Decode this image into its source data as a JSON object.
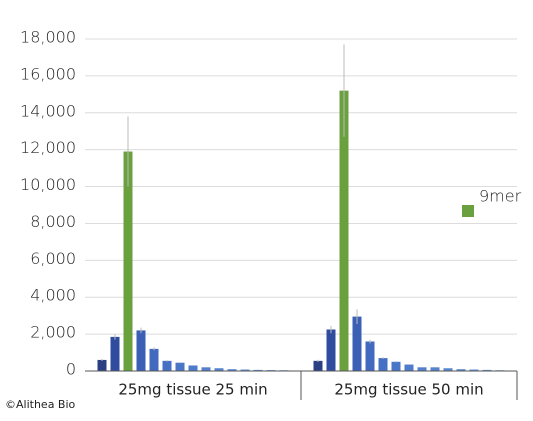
{
  "chart_data": {
    "type": "bar",
    "categories": [
      "25mg tissue 25 min",
      "25mg tissue 50 min"
    ],
    "series": [
      {
        "color": "#2b3f82",
        "values": [
          600,
          550
        ],
        "errors": [
          60,
          60
        ]
      },
      {
        "color": "#2f4c9e",
        "values": [
          1850,
          2250
        ],
        "errors": [
          150,
          200
        ]
      },
      {
        "name": "9mer",
        "color": "#6aa13e",
        "values": [
          11900,
          15200
        ],
        "errors": [
          1900,
          2500
        ]
      },
      {
        "color": "#3a5fb4",
        "values": [
          2200,
          2950
        ],
        "errors": [
          150,
          400
        ]
      },
      {
        "color": "#4169bf",
        "values": [
          1200,
          1600
        ],
        "errors": [
          80,
          100
        ]
      },
      {
        "color": "#4670c4",
        "values": [
          550,
          700
        ],
        "errors": [
          40,
          50
        ]
      },
      {
        "color": "#4a76c8",
        "values": [
          450,
          500
        ],
        "errors": [
          30,
          40
        ]
      },
      {
        "color": "#4e7bcb",
        "values": [
          300,
          350
        ],
        "errors": [
          20,
          30
        ]
      },
      {
        "color": "#5280cd",
        "values": [
          200,
          200
        ],
        "errors": [
          15,
          20
        ]
      },
      {
        "color": "#5584cf",
        "values": [
          150,
          200
        ],
        "errors": [
          10,
          15
        ]
      },
      {
        "color": "#5887d1",
        "values": [
          100,
          150
        ],
        "errors": [
          10,
          10
        ]
      },
      {
        "color": "#5b8ad2",
        "values": [
          80,
          100
        ],
        "errors": [
          5,
          10
        ]
      },
      {
        "color": "#5e8dd4",
        "values": [
          60,
          80
        ],
        "errors": [
          5,
          5
        ]
      },
      {
        "color": "#6190d5",
        "values": [
          50,
          60
        ],
        "errors": [
          5,
          5
        ]
      },
      {
        "color": "#6493d6",
        "values": [
          40,
          40
        ],
        "errors": [
          5,
          5
        ]
      }
    ],
    "ylim": [
      0,
      18000
    ],
    "yticks": [
      {
        "value": 0,
        "label": "0"
      },
      {
        "value": 2000,
        "label": "2,000"
      },
      {
        "value": 4000,
        "label": "4,000"
      },
      {
        "value": 6000,
        "label": "6,000"
      },
      {
        "value": 8000,
        "label": "8,000"
      },
      {
        "value": 10000,
        "label": "10,000"
      },
      {
        "value": 12000,
        "label": "12,000"
      },
      {
        "value": 14000,
        "label": "14,000"
      },
      {
        "value": 16000,
        "label": "16,000"
      },
      {
        "value": 18000,
        "label": "18,000"
      }
    ],
    "grid": true,
    "footer": "©Alithea Bio"
  }
}
